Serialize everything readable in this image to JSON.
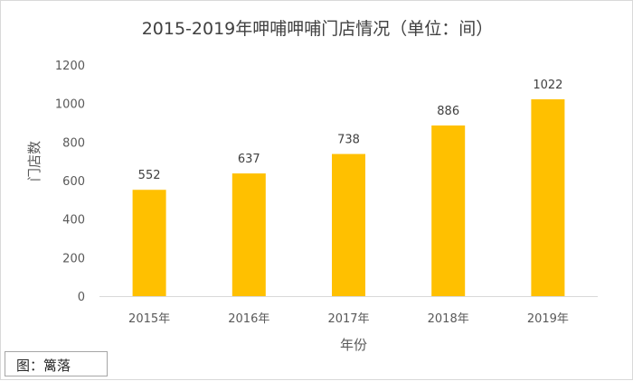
{
  "chart_data": {
    "type": "bar",
    "title": "2015-2019年呷哺呷哺门店情况（单位：间）",
    "xlabel": "年份",
    "ylabel": "门店数",
    "categories": [
      "2015年",
      "2016年",
      "2017年",
      "2018年",
      "2019年"
    ],
    "values": [
      552,
      637,
      738,
      886,
      1022
    ],
    "data_labels": [
      "552",
      "637",
      "738",
      "886",
      "1022"
    ],
    "y_ticks": [
      "0",
      "200",
      "400",
      "600",
      "800",
      "1000",
      "1200"
    ],
    "ylim": [
      0,
      1200
    ],
    "grid": false,
    "bar_color": "#FFC000"
  },
  "caption": "图：篱落"
}
